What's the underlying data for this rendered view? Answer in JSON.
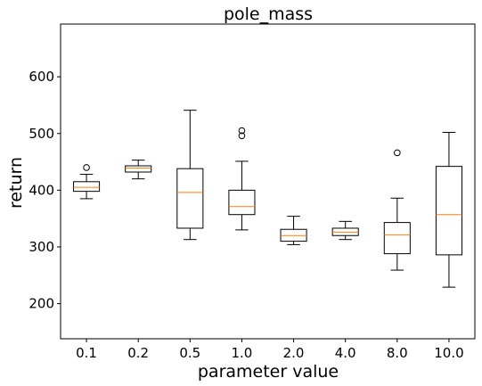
{
  "chart_data": {
    "type": "box",
    "title": "pole_mass",
    "xlabel": "parameter value",
    "ylabel": "return",
    "categories": [
      "0.1",
      "0.2",
      "0.5",
      "1.0",
      "2.0",
      "4.0",
      "8.0",
      "10.0"
    ],
    "yticks": [
      200,
      300,
      400,
      500,
      600
    ],
    "ylim": [
      138,
      693
    ],
    "grid": false,
    "colors": {
      "box": "#000000",
      "median": "#ff7f0e",
      "flier": "#000000"
    },
    "boxes": [
      {
        "whisker_low": 385,
        "q1": 398,
        "median": 405,
        "q3": 415,
        "whisker_high": 428,
        "fliers": [
          440
        ]
      },
      {
        "whisker_low": 420,
        "q1": 432,
        "median": 439,
        "q3": 443,
        "whisker_high": 453,
        "fliers": []
      },
      {
        "whisker_low": 313,
        "q1": 333,
        "median": 396,
        "q3": 438,
        "whisker_high": 541,
        "fliers": []
      },
      {
        "whisker_low": 330,
        "q1": 357,
        "median": 371,
        "q3": 400,
        "whisker_high": 451,
        "fliers": [
          496,
          505
        ]
      },
      {
        "whisker_low": 304,
        "q1": 310,
        "median": 320,
        "q3": 331,
        "whisker_high": 354,
        "fliers": []
      },
      {
        "whisker_low": 313,
        "q1": 320,
        "median": 326,
        "q3": 333,
        "whisker_high": 345,
        "fliers": []
      },
      {
        "whisker_low": 259,
        "q1": 288,
        "median": 321,
        "q3": 343,
        "whisker_high": 386,
        "fliers": [
          466
        ]
      },
      {
        "whisker_low": 229,
        "q1": 286,
        "median": 357,
        "q3": 442,
        "whisker_high": 502,
        "fliers": []
      }
    ]
  }
}
